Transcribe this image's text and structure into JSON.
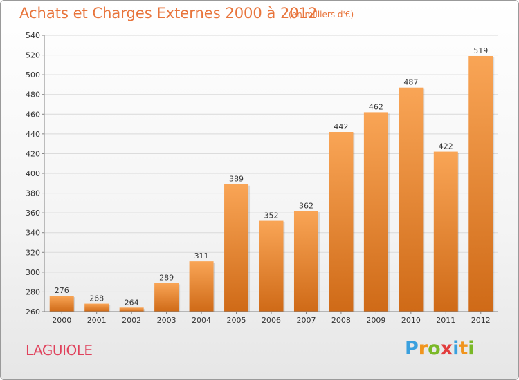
{
  "header": {
    "title": "Achats et Charges Externes 2000 à 2012",
    "unit": "(en milliers d'€)"
  },
  "footer": {
    "place": "LAGUIOLE",
    "brand_letters": [
      "P",
      "r",
      "o",
      "x",
      "i",
      "t",
      "i"
    ],
    "brand_colors": [
      "#3aa0de",
      "#f0941d",
      "#7ab827",
      "#e23c3c",
      "#3aa0de",
      "#f0941d",
      "#7ab827"
    ]
  },
  "colors": {
    "bar_top": "#f9a556",
    "bar_bottom": "#cf6a17",
    "grid": "#d9d9d9",
    "axis": "#808080",
    "text": "#333333"
  },
  "chart_data": {
    "type": "bar",
    "title": "Achats et Charges Externes 2000 à 2012",
    "categories": [
      "2000",
      "2001",
      "2002",
      "2003",
      "2004",
      "2005",
      "2006",
      "2007",
      "2008",
      "2009",
      "2010",
      "2011",
      "2012"
    ],
    "values": [
      276,
      268,
      264,
      289,
      311,
      389,
      352,
      362,
      442,
      462,
      487,
      422,
      519
    ],
    "ylim": [
      260,
      540
    ],
    "yticks": [
      260,
      280,
      300,
      320,
      340,
      360,
      380,
      400,
      420,
      440,
      460,
      480,
      500,
      520,
      540
    ],
    "grid": true,
    "xlabel": "",
    "ylabel": ""
  }
}
